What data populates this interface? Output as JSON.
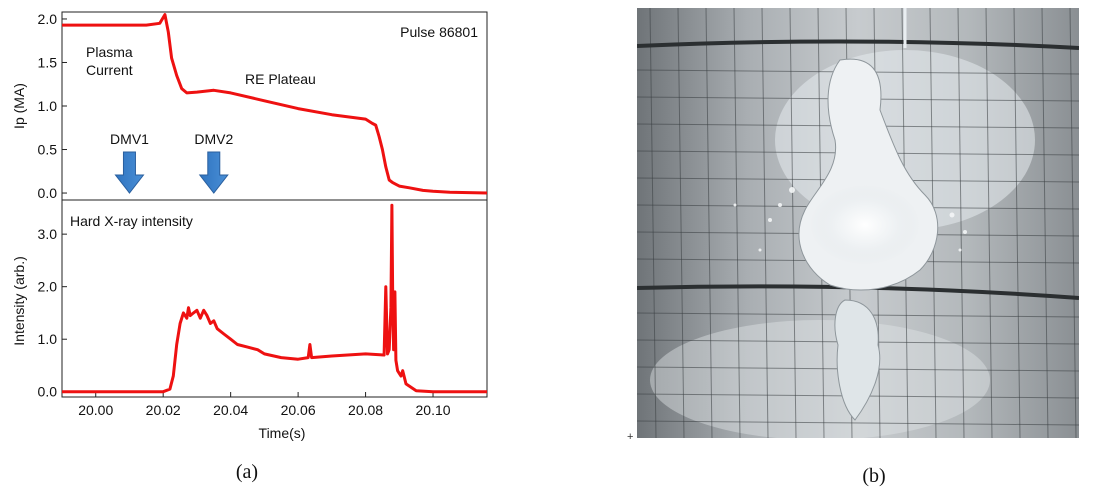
{
  "panel_labels": {
    "a": "(a)",
    "b": "(b)"
  },
  "chart_data": [
    {
      "type": "line",
      "title": "",
      "xlabel": "",
      "ylabel": "Ip (MA)",
      "xlim": [
        19.99,
        20.116
      ],
      "ylim": [
        -0.08,
        2.08
      ],
      "yticks": [
        "0.0",
        "0.5",
        "1.0",
        "1.5",
        "2.0"
      ],
      "series_color": "#ee1111",
      "annotations": {
        "pulse": "Pulse 86801",
        "plasma_line1": "Plasma",
        "plasma_line2": "Current",
        "plateau": "RE Plateau",
        "dmv1": "DMV1",
        "dmv2": "DMV2"
      },
      "arrows": [
        {
          "label": "DMV1",
          "x": 20.01
        },
        {
          "label": "DMV2",
          "x": 20.035
        }
      ],
      "series": [
        {
          "x": [
            19.99,
            20.0,
            20.01,
            20.015,
            20.019,
            20.0205,
            20.0215,
            20.0225,
            20.024,
            20.0255,
            20.027,
            20.03,
            20.035,
            20.04,
            20.05,
            20.06,
            20.07,
            20.078,
            20.08,
            20.082,
            20.083,
            20.084,
            20.085,
            20.086,
            20.087,
            20.088,
            20.089,
            20.09,
            20.093,
            20.097,
            20.1,
            20.105,
            20.116
          ],
          "y": [
            1.93,
            1.93,
            1.93,
            1.93,
            1.95,
            2.05,
            1.85,
            1.55,
            1.35,
            1.2,
            1.15,
            1.16,
            1.18,
            1.15,
            1.06,
            0.97,
            0.9,
            0.86,
            0.85,
            0.8,
            0.78,
            0.65,
            0.5,
            0.3,
            0.15,
            0.12,
            0.1,
            0.08,
            0.06,
            0.03,
            0.02,
            0.01,
            0.0
          ]
        }
      ]
    },
    {
      "type": "line",
      "title": "",
      "xlabel": "Time(s)",
      "ylabel": "Intensity (arb.)",
      "xlim": [
        19.99,
        20.116
      ],
      "ylim": [
        -0.1,
        3.65
      ],
      "yticks": [
        "0.0",
        "1.0",
        "2.0",
        "3.0"
      ],
      "xticks": [
        "20.00",
        "20.02",
        "20.04",
        "20.06",
        "20.08",
        "20.10"
      ],
      "series_color": "#ee1111",
      "annotations": {
        "hxr": "Hard X-ray intensity"
      },
      "series": [
        {
          "x": [
            19.99,
            20.0,
            20.01,
            20.02,
            20.022,
            20.023,
            20.024,
            20.025,
            20.026,
            20.027,
            20.0275,
            20.028,
            20.029,
            20.03,
            20.031,
            20.032,
            20.033,
            20.034,
            20.035,
            20.036,
            20.038,
            20.04,
            20.042,
            20.045,
            20.048,
            20.05,
            20.055,
            20.06,
            20.063,
            20.0635,
            20.064,
            20.07,
            20.08,
            20.0855,
            20.086,
            20.0865,
            20.087,
            20.0875,
            20.0878,
            20.088,
            20.0883,
            20.0887,
            20.089,
            20.0895,
            20.09,
            20.0905,
            20.091,
            20.092,
            20.095,
            20.1,
            20.116
          ],
          "y": [
            0.0,
            0.0,
            0.0,
            0.0,
            0.05,
            0.3,
            0.9,
            1.3,
            1.5,
            1.4,
            1.6,
            1.45,
            1.5,
            1.55,
            1.4,
            1.55,
            1.45,
            1.3,
            1.35,
            1.2,
            1.1,
            1.0,
            0.9,
            0.85,
            0.8,
            0.72,
            0.65,
            0.62,
            0.65,
            0.9,
            0.65,
            0.68,
            0.72,
            0.7,
            2.0,
            0.72,
            0.8,
            1.6,
            3.55,
            2.0,
            0.8,
            1.9,
            0.6,
            0.4,
            0.35,
            0.3,
            0.4,
            0.15,
            0.02,
            0.0,
            0.0
          ]
        }
      ]
    }
  ]
}
